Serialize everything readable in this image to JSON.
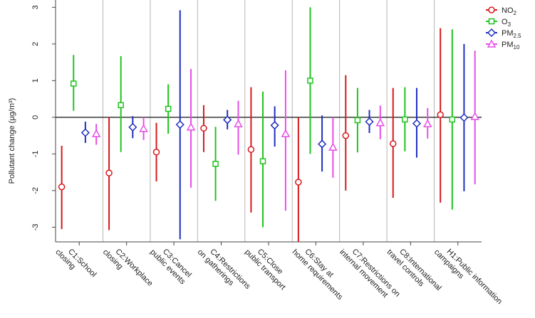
{
  "chart_data": {
    "type": "scatter",
    "ylabel": "Pollutant change (μg/m³)",
    "ylim": [
      -3.4,
      3.2
    ],
    "yticks": [
      -3,
      -2,
      -1,
      0,
      1,
      2,
      3
    ],
    "ytick_labels": [
      "-3",
      "-2",
      "-1",
      "0",
      "1",
      "2",
      "3"
    ],
    "reference_line": 0,
    "legend_position": "top-right",
    "categories": [
      [
        "C1:School",
        "closing"
      ],
      [
        "C2:Workplace",
        "closing"
      ],
      [
        "C3:Cancel",
        "public events"
      ],
      [
        "C4:Restrictions",
        "on gatherings"
      ],
      [
        "C5:Close",
        "public transport"
      ],
      [
        "C6:Stay at",
        "home requirements"
      ],
      [
        "C7:Restrictions on",
        "internal movement"
      ],
      [
        "C8:International",
        "travel controls"
      ],
      [
        "H1:Public information",
        "campaigns"
      ]
    ],
    "series": [
      {
        "name": "NO2",
        "label_main": "NO",
        "label_sub": "2",
        "color": "#d7191c",
        "marker": "circle",
        "points": [
          {
            "estimate": -1.9,
            "lower": -3.05,
            "upper": -0.78
          },
          {
            "estimate": -1.52,
            "lower": -3.08,
            "upper": 0.0
          },
          {
            "estimate": -0.95,
            "lower": -1.75,
            "upper": -0.15
          },
          {
            "estimate": -0.3,
            "lower": -0.95,
            "upper": 0.33
          },
          {
            "estimate": -0.88,
            "lower": -2.6,
            "upper": 0.82
          },
          {
            "estimate": -1.77,
            "lower": -3.4,
            "upper": 0.0
          },
          {
            "estimate": -0.5,
            "lower": -2.0,
            "upper": 1.15
          },
          {
            "estimate": -0.72,
            "lower": -2.2,
            "upper": 0.8
          },
          {
            "estimate": 0.07,
            "lower": -2.33,
            "upper": 2.43
          }
        ]
      },
      {
        "name": "O3",
        "label_main": "O",
        "label_sub": "3",
        "color": "#1ec41e",
        "marker": "square",
        "points": [
          {
            "estimate": 0.92,
            "lower": 0.18,
            "upper": 1.7
          },
          {
            "estimate": 0.33,
            "lower": -0.95,
            "upper": 1.67
          },
          {
            "estimate": 0.23,
            "lower": -0.45,
            "upper": 0.9
          },
          {
            "estimate": -1.27,
            "lower": -2.28,
            "upper": -0.26
          },
          {
            "estimate": -1.2,
            "lower": -3.0,
            "upper": 0.7
          },
          {
            "estimate": 1.0,
            "lower": -1.0,
            "upper": 3.0
          },
          {
            "estimate": -0.08,
            "lower": -0.96,
            "upper": 0.8
          },
          {
            "estimate": -0.06,
            "lower": -0.93,
            "upper": 0.82
          },
          {
            "estimate": -0.06,
            "lower": -2.52,
            "upper": 2.4
          }
        ]
      },
      {
        "name": "PM2.5",
        "label_main": "PM",
        "label_sub": "2.5",
        "color": "#1f2fbf",
        "marker": "diamond",
        "points": [
          {
            "estimate": -0.42,
            "lower": -0.7,
            "upper": -0.12
          },
          {
            "estimate": -0.27,
            "lower": -0.57,
            "upper": 0.03
          },
          {
            "estimate": -0.2,
            "lower": -3.33,
            "upper": 2.92
          },
          {
            "estimate": -0.07,
            "lower": -0.33,
            "upper": 0.2
          },
          {
            "estimate": -0.22,
            "lower": -0.8,
            "upper": 0.3
          },
          {
            "estimate": -0.73,
            "lower": -1.48,
            "upper": 0.05
          },
          {
            "estimate": -0.12,
            "lower": -0.43,
            "upper": 0.2
          },
          {
            "estimate": -0.17,
            "lower": -1.1,
            "upper": 0.8
          },
          {
            "estimate": -0.01,
            "lower": -2.02,
            "upper": 2.0
          }
        ]
      },
      {
        "name": "PM10",
        "label_main": "PM",
        "label_sub": "10",
        "color": "#e84ee8",
        "marker": "triangle",
        "points": [
          {
            "estimate": -0.45,
            "lower": -0.75,
            "upper": -0.18
          },
          {
            "estimate": -0.31,
            "lower": -0.62,
            "upper": 0.0
          },
          {
            "estimate": -0.27,
            "lower": -1.92,
            "upper": 1.32
          },
          {
            "estimate": -0.18,
            "lower": -1.02,
            "upper": 0.45
          },
          {
            "estimate": -0.45,
            "lower": -2.55,
            "upper": 1.28
          },
          {
            "estimate": -0.82,
            "lower": -1.65,
            "upper": 0.0
          },
          {
            "estimate": -0.15,
            "lower": -0.6,
            "upper": 0.32
          },
          {
            "estimate": -0.18,
            "lower": -0.58,
            "upper": 0.25
          },
          {
            "estimate": 0.02,
            "lower": -1.83,
            "upper": 1.82
          }
        ]
      }
    ]
  }
}
